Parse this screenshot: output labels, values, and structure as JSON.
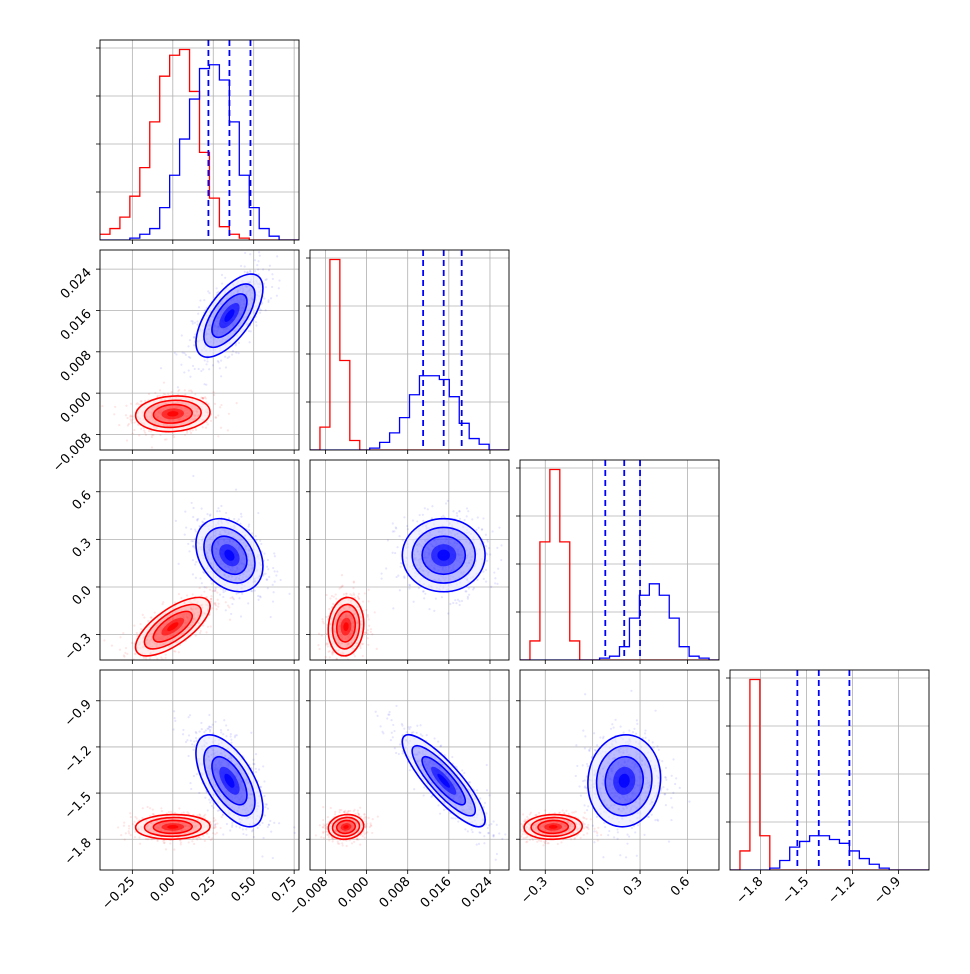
{
  "chart_data": {
    "type": "corner",
    "colors": {
      "series_a": "#ff0000",
      "series_b": "#0000ff"
    },
    "axes": [
      {
        "ticks": [
          -0.25,
          0.0,
          0.25,
          0.5,
          0.75
        ],
        "labels": [
          "−0.25",
          "0.00",
          "0.25",
          "0.50",
          "0.75"
        ],
        "range": [
          -0.45,
          0.78
        ]
      },
      {
        "ticks": [
          -0.008,
          0.0,
          0.008,
          0.016,
          0.024
        ],
        "labels": [
          "−0.008",
          "0.000",
          "0.008",
          "0.016",
          "0.024"
        ],
        "range": [
          -0.011,
          0.0277
        ]
      },
      {
        "ticks": [
          -0.3,
          0.0,
          0.3,
          0.6
        ],
        "labels": [
          "−0.3",
          "0.0",
          "0.3",
          "0.6"
        ],
        "range": [
          -0.46,
          0.8
        ]
      },
      {
        "ticks": [
          -1.8,
          -1.5,
          -1.2,
          -0.9
        ],
        "labels": [
          "−1.8",
          "−1.5",
          "−1.2",
          "−0.9"
        ],
        "range": [
          -2.0,
          -0.7
        ]
      }
    ],
    "series": [
      {
        "color": "#ff0000",
        "centers": [
          0.0,
          -0.004,
          -0.25,
          -1.72
        ],
        "spreads": [
          0.1,
          0.0015,
          0.08,
          0.035
        ],
        "correlations": [
          [
            0,
            1,
            0.1
          ],
          [
            0,
            2,
            0.7
          ],
          [
            0,
            3,
            0.05
          ],
          [
            1,
            2,
            0.1
          ],
          [
            1,
            3,
            0.1
          ],
          [
            2,
            3,
            0.05
          ]
        ],
        "hist": [
          [
            0.03,
            0.06,
            0.12,
            0.23,
            0.38,
            0.62,
            0.86,
            0.97,
            1.0,
            0.78,
            0.46,
            0.22,
            0.07,
            0.03,
            0.01,
            0.0,
            0.0,
            0.0,
            0.0,
            0.0
          ],
          [
            0.0,
            0.12,
            1.0,
            0.47,
            0.05,
            0.0,
            0.0,
            0.0,
            0.0,
            0.0,
            0.0,
            0.0,
            0.0,
            0.0,
            0.0,
            0.0,
            0.0,
            0.0,
            0.0,
            0.0
          ],
          [
            0.0,
            0.1,
            0.62,
            1.0,
            0.62,
            0.1,
            0.0,
            0.0,
            0.0,
            0.0,
            0.0,
            0.0,
            0.0,
            0.0,
            0.0,
            0.0,
            0.0,
            0.0,
            0.0,
            0.0
          ],
          [
            0.0,
            0.1,
            1.0,
            0.18,
            0.0,
            0.0,
            0.0,
            0.0,
            0.0,
            0.0,
            0.0,
            0.0,
            0.0,
            0.0,
            0.0,
            0.0,
            0.0,
            0.0,
            0.0,
            0.0
          ]
        ]
      },
      {
        "color": "#0000ff",
        "centers": [
          0.35,
          0.015,
          0.2,
          -1.42
        ],
        "spreads": [
          0.09,
          0.0035,
          0.1,
          0.13
        ],
        "quantiles": [
          [
            0.22,
            0.35,
            0.48
          ],
          [
            0.011,
            0.015,
            0.0185
          ],
          [
            0.08,
            0.2,
            0.3
          ],
          [
            -1.56,
            -1.42,
            -1.22
          ]
        ],
        "correlations": [
          [
            0,
            1,
            0.65
          ],
          [
            0,
            2,
            -0.3
          ],
          [
            0,
            3,
            -0.6
          ],
          [
            1,
            2,
            0.0
          ],
          [
            1,
            3,
            -0.85
          ],
          [
            2,
            3,
            0.05
          ]
        ],
        "hist": [
          [
            0.0,
            0.0,
            0.0,
            0.01,
            0.03,
            0.06,
            0.17,
            0.34,
            0.53,
            0.74,
            0.9,
            0.92,
            0.84,
            0.62,
            0.34,
            0.17,
            0.06,
            0.02,
            0.0,
            0.0
          ],
          [
            0.0,
            0.0,
            0.0,
            0.0,
            0.0,
            0.0,
            0.01,
            0.04,
            0.09,
            0.17,
            0.29,
            0.39,
            0.39,
            0.37,
            0.28,
            0.14,
            0.06,
            0.03,
            0.0,
            0.0
          ],
          [
            0.0,
            0.0,
            0.0,
            0.0,
            0.0,
            0.0,
            0.0,
            0.0,
            0.01,
            0.02,
            0.07,
            0.22,
            0.34,
            0.4,
            0.34,
            0.22,
            0.07,
            0.02,
            0.01,
            0.0
          ],
          [
            0.0,
            0.0,
            0.0,
            0.0,
            0.01,
            0.05,
            0.12,
            0.15,
            0.18,
            0.18,
            0.16,
            0.14,
            0.1,
            0.06,
            0.03,
            0.01,
            0.0,
            0.0,
            0.0,
            0.0
          ]
        ]
      }
    ],
    "grid": true,
    "quantile_lines": "dashed"
  }
}
